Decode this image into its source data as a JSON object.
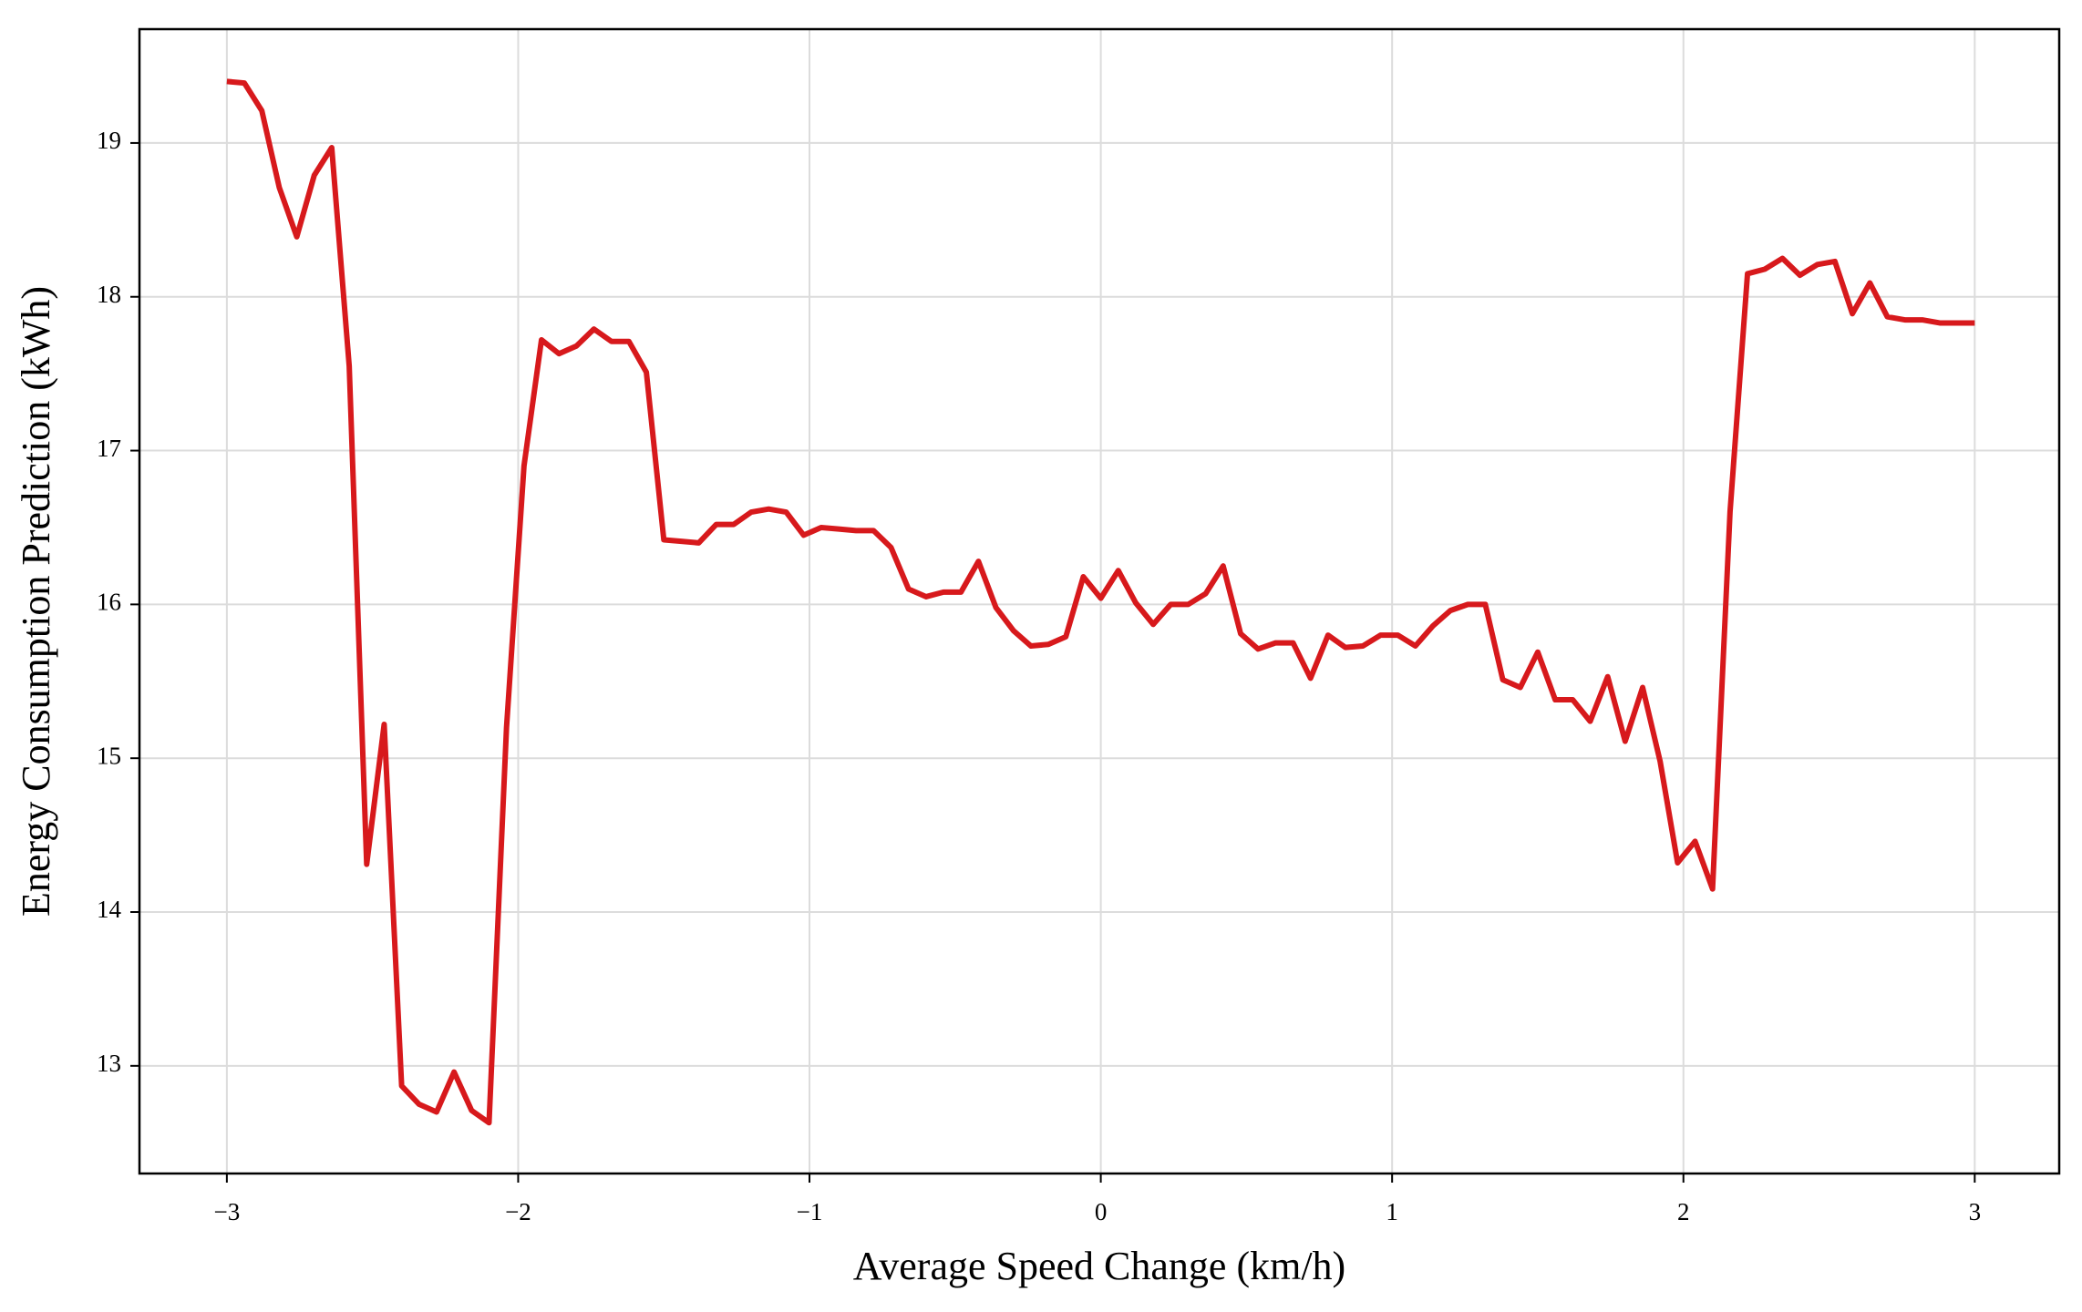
{
  "chart_data": {
    "type": "line",
    "x_label": "Average Speed Change (km/h)",
    "y_label": "Energy Consumption Prediction (kWh)",
    "x": [
      -3.0,
      -2.94,
      -2.88,
      -2.82,
      -2.76,
      -2.7,
      -2.64,
      -2.58,
      -2.52,
      -2.46,
      -2.4,
      -2.34,
      -2.28,
      -2.22,
      -2.16,
      -2.1,
      -2.04,
      -1.98,
      -1.92,
      -1.86,
      -1.8,
      -1.74,
      -1.68,
      -1.62,
      -1.56,
      -1.5,
      -1.44,
      -1.38,
      -1.32,
      -1.26,
      -1.2,
      -1.14,
      -1.08,
      -1.02,
      -0.96,
      -0.9,
      -0.84,
      -0.78,
      -0.72,
      -0.66,
      -0.6,
      -0.54,
      -0.48,
      -0.42,
      -0.36,
      -0.3,
      -0.24,
      -0.18,
      -0.12,
      -0.06,
      0.0,
      0.06,
      0.12,
      0.18,
      0.24,
      0.3,
      0.36,
      0.42,
      0.48,
      0.54,
      0.6,
      0.66,
      0.72,
      0.78,
      0.84,
      0.9,
      0.96,
      1.02,
      1.08,
      1.14,
      1.2,
      1.26,
      1.32,
      1.38,
      1.44,
      1.5,
      1.56,
      1.62,
      1.68,
      1.74,
      1.8,
      1.86,
      1.92,
      1.98,
      2.04,
      2.1,
      2.16,
      2.22,
      2.28,
      2.34,
      2.4,
      2.46,
      2.52,
      2.58,
      2.64,
      2.7,
      2.76,
      2.82,
      2.88,
      2.94,
      3.0
    ],
    "series": [
      {
        "color": "#d7191c",
        "values": [
          19.4,
          19.39,
          19.21,
          18.71,
          18.39,
          18.79,
          18.97,
          17.55,
          14.31,
          15.22,
          12.87,
          12.75,
          12.7,
          12.96,
          12.71,
          12.63,
          15.2,
          16.9,
          17.72,
          17.63,
          17.68,
          17.79,
          17.71,
          17.71,
          17.51,
          16.42,
          16.41,
          16.4,
          16.52,
          16.52,
          16.6,
          16.62,
          16.6,
          16.45,
          16.5,
          16.49,
          16.48,
          16.48,
          16.37,
          16.1,
          16.05,
          16.08,
          16.08,
          16.28,
          15.98,
          15.83,
          15.73,
          15.74,
          15.79,
          16.18,
          16.04,
          16.22,
          16.01,
          15.87,
          16.0,
          16.0,
          16.07,
          16.25,
          15.81,
          15.71,
          15.75,
          15.75,
          15.52,
          15.8,
          15.72,
          15.73,
          15.8,
          15.8,
          15.73,
          15.86,
          15.96,
          16.0,
          16.0,
          15.51,
          15.46,
          15.69,
          15.38,
          15.38,
          15.24,
          15.53,
          15.11,
          15.46,
          14.98,
          14.32,
          14.46,
          14.15,
          16.6,
          18.15,
          18.18,
          18.25,
          18.14,
          18.21,
          18.23,
          17.89,
          18.09,
          17.87,
          17.85,
          17.85,
          17.83,
          17.83,
          17.83
        ]
      }
    ],
    "xlim": [
      -3.3,
      3.29
    ],
    "ylim": [
      12.3,
      19.74
    ],
    "xticks": [
      {
        "value": -3,
        "label": "−3"
      },
      {
        "value": -2,
        "label": "−2"
      },
      {
        "value": -1,
        "label": "−1"
      },
      0,
      1,
      2,
      3
    ],
    "yticks": [
      13,
      14,
      15,
      16,
      17,
      18,
      19
    ],
    "grid": true
  }
}
